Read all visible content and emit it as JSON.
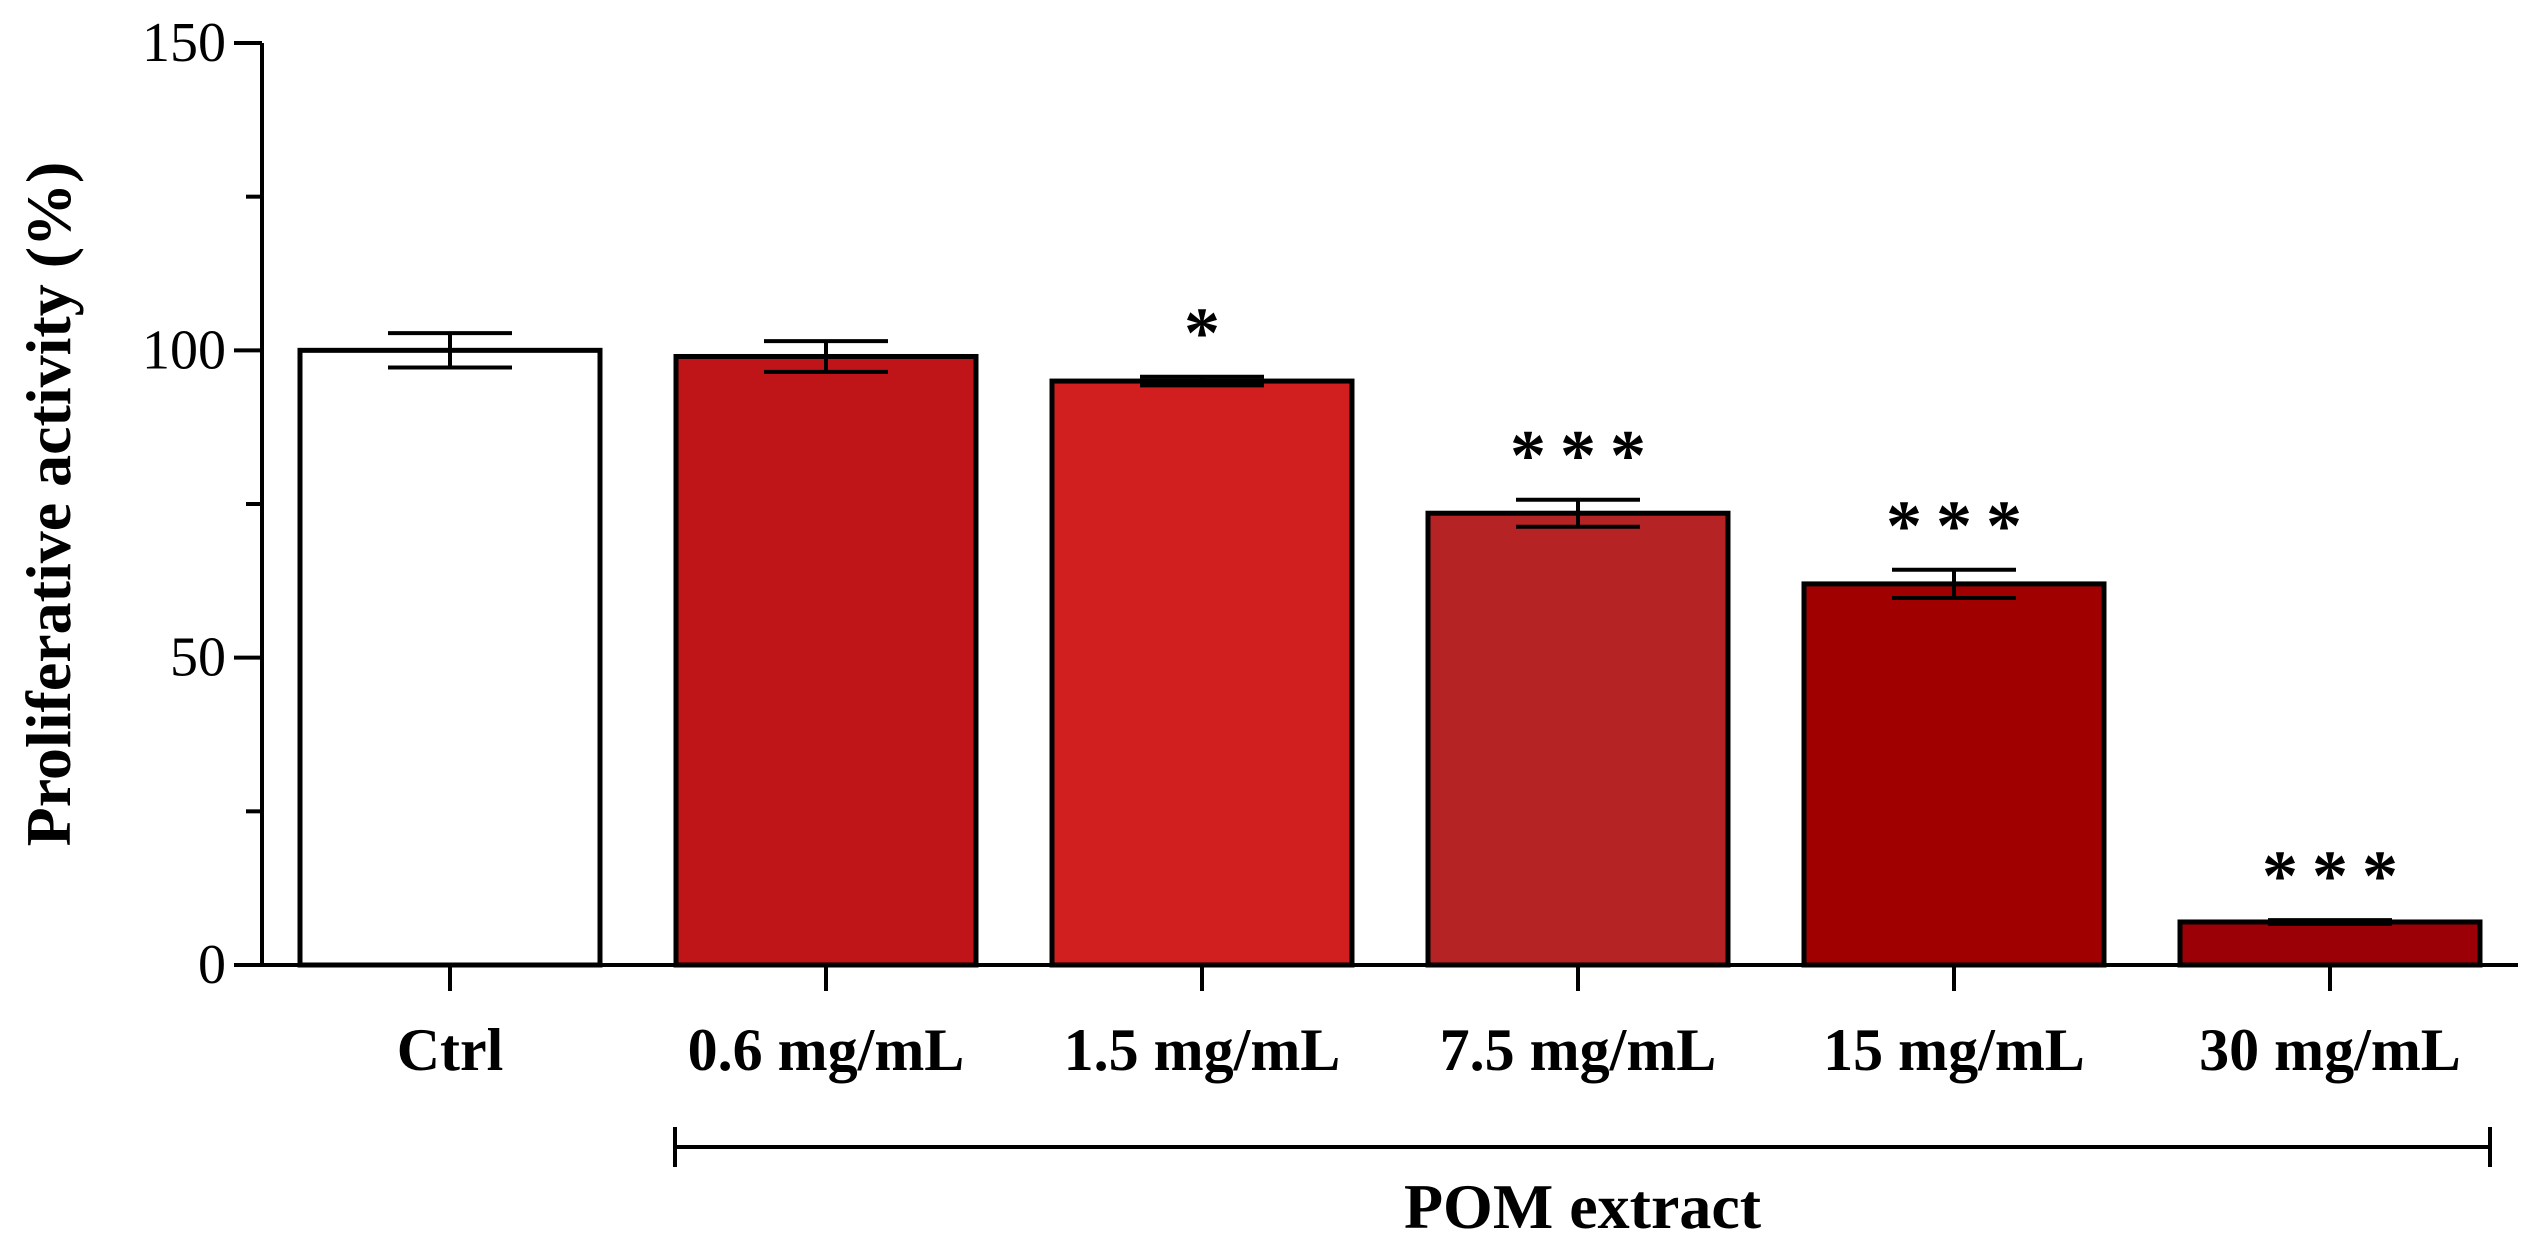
{
  "chart_data": {
    "type": "bar",
    "title": "",
    "xlabel": "",
    "ylabel": "Proliferative activity (%)",
    "ylim": [
      0,
      150
    ],
    "yticks": [
      0,
      50,
      100,
      150
    ],
    "categories": [
      "Ctrl",
      "0.6 mg/mL",
      "1.5 mg/mL",
      "7.5 mg/mL",
      "15 mg/mL",
      "30 mg/mL"
    ],
    "values": [
      100,
      99,
      95,
      73.5,
      62,
      7
    ],
    "errors": [
      2.8,
      2.5,
      0.7,
      2.2,
      2.3,
      0.3
    ],
    "significance": [
      "",
      "",
      "*",
      "***",
      "***",
      "***"
    ],
    "colors": [
      "#ffffff",
      "#bf1518",
      "#d11f20",
      "#b62325",
      "#a10000",
      "#9a0005"
    ],
    "group_label": "POM extract",
    "grid": false,
    "legend": "none"
  }
}
